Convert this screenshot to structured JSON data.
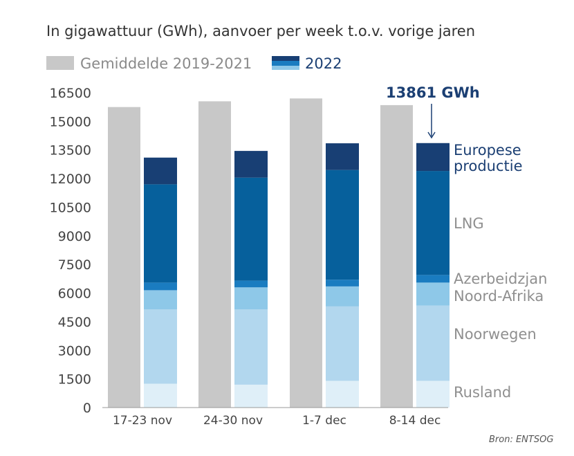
{
  "chart_data": {
    "type": "bar",
    "title": "In gigawattuur (GWh), aanvoer per week t.o.v. vorige jaren",
    "categories": [
      "17-23 nov",
      "24-30 nov",
      "1-7 dec",
      "8-14 dec"
    ],
    "ylim": [
      0,
      16500
    ],
    "yticks": [
      0,
      1500,
      3000,
      4500,
      6000,
      7500,
      9000,
      10500,
      12000,
      13500,
      15000,
      16500
    ],
    "grid": false,
    "legend": {
      "placement": "top-left",
      "entries": [
        "Gemiddelde 2019-2021",
        "2022"
      ]
    },
    "series": [
      {
        "name": "Gemiddelde 2019-2021",
        "stack": "avg",
        "color": "#c8c8c8",
        "values": [
          15750,
          16050,
          16200,
          15850
        ]
      },
      {
        "name": "Rusland",
        "stack": "2022",
        "color": "#dfeff8",
        "values": [
          1250,
          1200,
          1400,
          1400
        ]
      },
      {
        "name": "Noorwegen",
        "stack": "2022",
        "color": "#b2d7ee",
        "values": [
          3900,
          3950,
          3900,
          3950
        ]
      },
      {
        "name": "Noord-Afrika",
        "stack": "2022",
        "color": "#8ec8e8",
        "values": [
          1000,
          1150,
          1050,
          1200
        ]
      },
      {
        "name": "Azerbeidzjan",
        "stack": "2022",
        "color": "#1a7cc0",
        "values": [
          400,
          350,
          350,
          400
        ]
      },
      {
        "name": "LNG",
        "stack": "2022",
        "color": "#06609c",
        "values": [
          5150,
          5400,
          5750,
          5450
        ]
      },
      {
        "name": "Europese productie",
        "stack": "2022",
        "color": "#183f74",
        "values": [
          1400,
          1400,
          1400,
          1461
        ]
      }
    ],
    "series_labels": {
      "europese_productie_line1": "Europese",
      "europese_productie_line2": "productie",
      "lng": "LNG",
      "azerbeidzjan": "Azerbeidzjan",
      "noord_afrika": "Noord-Afrika",
      "noorwegen": "Noorwegen",
      "rusland": "Rusland"
    },
    "annotation": {
      "text": "13861 GWh",
      "category": "8-14 dec",
      "value": 13861
    },
    "source": "Bron: ENTSOG"
  },
  "colors": {
    "avg": "#c8c8c8",
    "title": "#333333",
    "legend_avg_text": "#8a8a8a",
    "legend_2022_text": "#1b3f73",
    "label_dark": "#1b3f73",
    "label_grey": "#8f8f8f",
    "axis_text": "#444444",
    "arrow": "#1b3f73"
  }
}
